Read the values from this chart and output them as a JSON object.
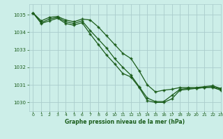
{
  "title": "Graphe pression niveau de la mer (hPa)",
  "bg_color": "#cceee8",
  "grid_color": "#aacccc",
  "line_color": "#1a5c1a",
  "xlim": [
    -0.5,
    23
  ],
  "ylim": [
    1029.5,
    1035.6
  ],
  "yticks": [
    1030,
    1031,
    1032,
    1033,
    1034,
    1035
  ],
  "xticks": [
    0,
    1,
    2,
    3,
    4,
    5,
    6,
    7,
    8,
    9,
    10,
    11,
    12,
    13,
    14,
    15,
    16,
    17,
    18,
    19,
    20,
    21,
    22,
    23
  ],
  "line1_x": [
    0,
    1,
    2,
    3,
    4,
    5,
    6,
    7,
    8,
    9,
    10,
    11,
    12,
    13,
    14,
    15,
    16,
    17,
    18,
    19,
    20,
    21,
    22,
    23
  ],
  "line1_y": [
    1035.1,
    1034.65,
    1034.85,
    1034.9,
    1034.7,
    1034.6,
    1034.75,
    1034.7,
    1034.3,
    1033.8,
    1033.3,
    1032.8,
    1032.5,
    1031.8,
    1031.0,
    1030.6,
    1030.7,
    1030.75,
    1030.85,
    1030.85,
    1030.85,
    1030.9,
    1030.95,
    1030.8
  ],
  "line2_x": [
    0,
    1,
    2,
    3,
    4,
    5,
    6,
    7,
    8,
    9,
    10,
    11,
    12,
    13,
    14,
    15,
    16,
    17,
    18,
    19,
    20,
    21,
    22,
    23
  ],
  "line2_y": [
    1035.1,
    1034.55,
    1034.75,
    1034.85,
    1034.6,
    1034.5,
    1034.65,
    1034.1,
    1033.6,
    1033.1,
    1032.5,
    1032.0,
    1031.55,
    1030.9,
    1030.25,
    1030.05,
    1030.05,
    1030.4,
    1030.75,
    1030.8,
    1030.8,
    1030.85,
    1030.9,
    1030.75
  ],
  "line3_x": [
    0,
    1,
    2,
    3,
    4,
    5,
    6,
    7,
    8,
    9,
    10,
    11,
    12,
    13,
    14,
    15,
    16,
    17,
    18,
    19,
    20,
    21,
    22,
    23
  ],
  "line3_y": [
    1035.1,
    1034.5,
    1034.65,
    1034.8,
    1034.5,
    1034.4,
    1034.55,
    1033.9,
    1033.3,
    1032.7,
    1032.2,
    1031.65,
    1031.45,
    1030.85,
    1030.1,
    1030.0,
    1030.0,
    1030.2,
    1030.7,
    1030.75,
    1030.8,
    1030.85,
    1030.85,
    1030.7
  ]
}
